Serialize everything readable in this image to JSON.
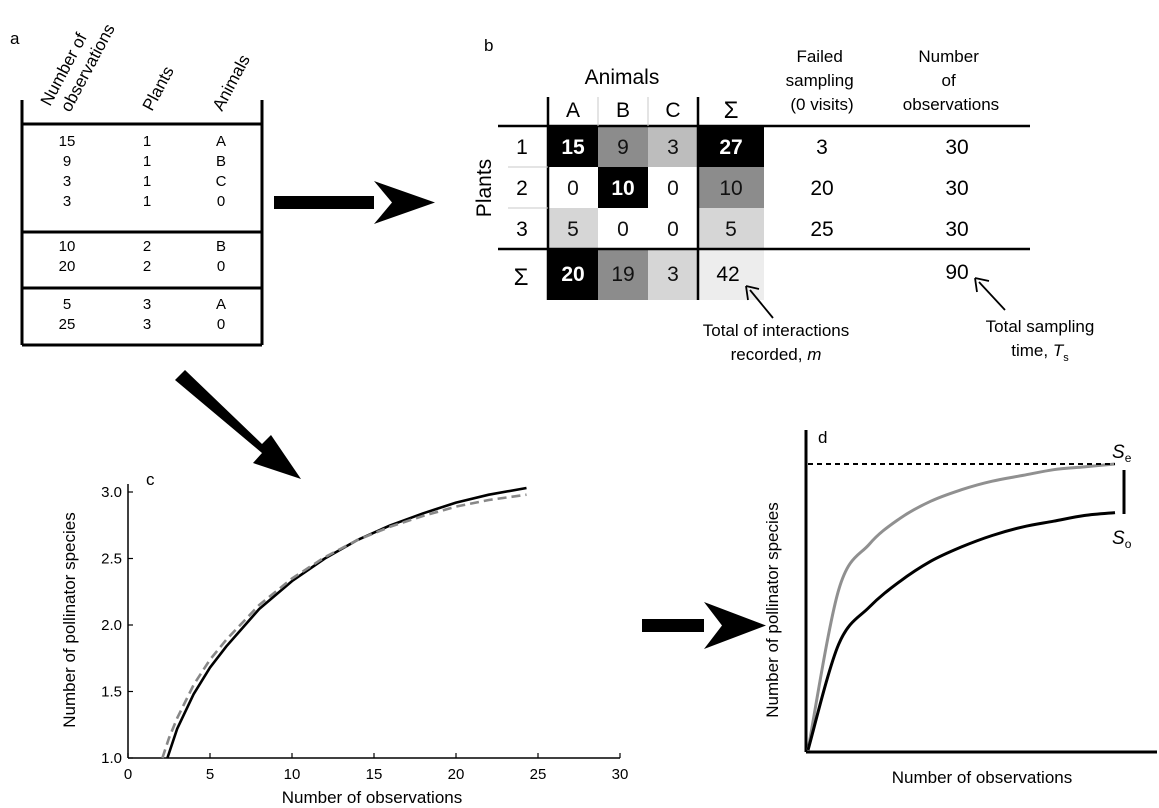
{
  "panel_labels": {
    "a": "a",
    "b": "b",
    "c": "c",
    "d": "d"
  },
  "panel_a": {
    "headers": [
      "Number of",
      "observations",
      "Plants",
      "Animals"
    ],
    "groups": [
      [
        [
          "15",
          "1",
          "A"
        ],
        [
          "9",
          "1",
          "B"
        ],
        [
          "3",
          "1",
          "C"
        ],
        [
          "3",
          "1",
          "0"
        ]
      ],
      [
        [
          "10",
          "2",
          "B"
        ],
        [
          "20",
          "2",
          "0"
        ]
      ],
      [
        [
          "5",
          "3",
          "A"
        ],
        [
          "25",
          "3",
          "0"
        ]
      ]
    ]
  },
  "panel_b": {
    "animals_title": "Animals",
    "plants_title": "Plants",
    "col_headers": [
      "A",
      "B",
      "C"
    ],
    "sum_symbol": "Σ",
    "failed_header": [
      "Failed",
      "sampling",
      "(0 visits)"
    ],
    "obs_header": [
      "Number",
      "of",
      "observations"
    ],
    "rows": [
      {
        "label": "1",
        "cells": [
          "15",
          "9",
          "3"
        ],
        "sum": "27",
        "failed": "3",
        "obs": "30"
      },
      {
        "label": "2",
        "cells": [
          "0",
          "10",
          "0"
        ],
        "sum": "10",
        "failed": "20",
        "obs": "30"
      },
      {
        "label": "3",
        "cells": [
          "5",
          "0",
          "0"
        ],
        "sum": "5",
        "failed": "25",
        "obs": "30"
      }
    ],
    "col_sums": [
      "20",
      "19",
      "3"
    ],
    "total_m": "42",
    "total_obs": "90",
    "note_m": {
      "line1": "Total of interactions",
      "line2": "recorded, ",
      "var": "m"
    },
    "note_ts": {
      "line1": "Total sampling",
      "line2": "time, ",
      "var": "T",
      "sub": "s"
    },
    "colors": {
      "black": "#000000",
      "dark": "#8c8c8c",
      "mid": "#bdbdbd",
      "light": "#d6d6d6",
      "lightest": "#ededed",
      "white": "#ffffff"
    }
  },
  "chart_data": [
    {
      "panel": "c",
      "type": "line",
      "xlabel": "Number of observations",
      "ylabel": "Number of pollinator species",
      "xlim": [
        0,
        30
      ],
      "ylim": [
        1.0,
        3.1
      ],
      "xticks": [
        "0",
        "5",
        "10",
        "15",
        "20",
        "25",
        "30"
      ],
      "yticks": [
        "1.0",
        "1.5",
        "2.0",
        "2.5",
        "3.0"
      ],
      "series": [
        {
          "style": "solid",
          "color": "#000000",
          "x": [
            2.4,
            3,
            4,
            5,
            6,
            8,
            10,
            12,
            14,
            16,
            18,
            20,
            22,
            24.3
          ],
          "y": [
            1.0,
            1.22,
            1.48,
            1.68,
            1.84,
            2.12,
            2.33,
            2.5,
            2.64,
            2.75,
            2.84,
            2.92,
            2.98,
            3.03
          ]
        },
        {
          "style": "dashed",
          "color": "#888888",
          "x": [
            2.1,
            2.5,
            3,
            4,
            5,
            6,
            8,
            10,
            12,
            14,
            16,
            18,
            20,
            22,
            24.3
          ],
          "y": [
            1.0,
            1.15,
            1.3,
            1.55,
            1.74,
            1.89,
            2.15,
            2.35,
            2.51,
            2.64,
            2.74,
            2.82,
            2.89,
            2.94,
            2.98
          ]
        }
      ]
    },
    {
      "panel": "d",
      "type": "line",
      "xlabel": "Number of observations",
      "ylabel": "Number of pollinator species",
      "annotations": {
        "se": "S",
        "se_sub": "e",
        "so": "S",
        "so_sub": "o"
      },
      "series": [
        {
          "style": "solid",
          "color": "#909090",
          "note": "expected accumulation",
          "x": [
            0,
            0.1,
            0.2,
            0.3,
            0.4,
            0.5,
            0.6,
            0.7,
            0.8,
            0.9,
            1.0
          ],
          "y": [
            0,
            0.56,
            0.72,
            0.81,
            0.87,
            0.91,
            0.94,
            0.96,
            0.98,
            0.99,
            1.0
          ]
        },
        {
          "style": "solid",
          "color": "#000000",
          "note": "observed accumulation",
          "x": [
            0,
            0.1,
            0.2,
            0.3,
            0.4,
            0.5,
            0.6,
            0.7,
            0.8,
            0.9,
            1.0
          ],
          "y": [
            0,
            0.37,
            0.5,
            0.59,
            0.66,
            0.71,
            0.75,
            0.78,
            0.8,
            0.82,
            0.83
          ]
        },
        {
          "style": "dashed",
          "color": "#000000",
          "note": "asymptote",
          "x": [
            0,
            1.0
          ],
          "y": [
            1.0,
            1.0
          ]
        }
      ]
    }
  ]
}
